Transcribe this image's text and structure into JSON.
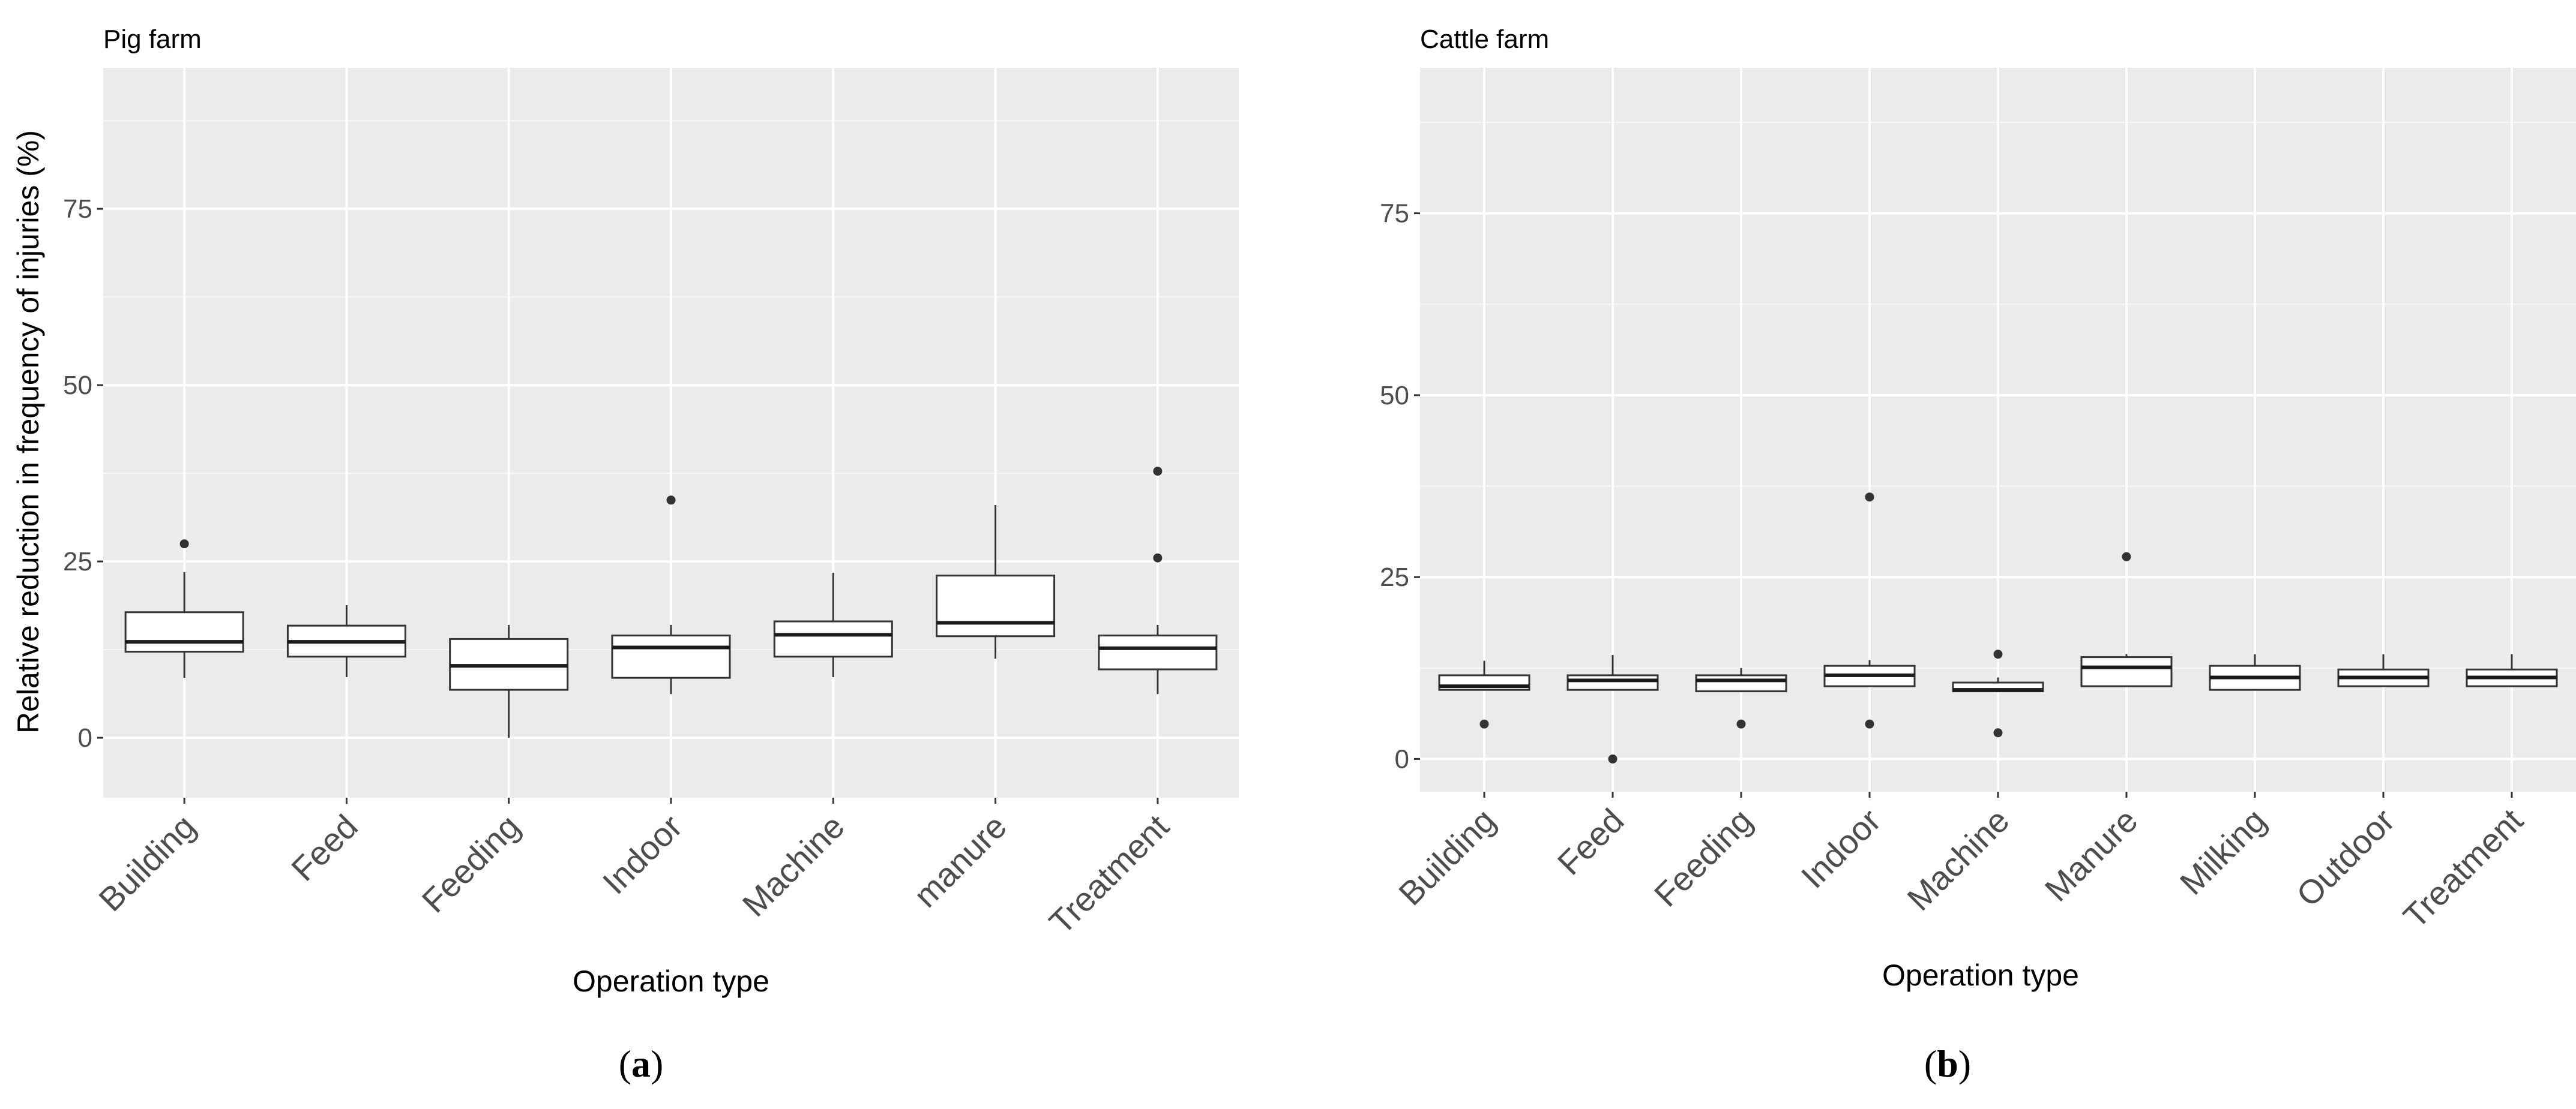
{
  "figure": {
    "panel_label_a": "a",
    "panel_label_b": "b"
  },
  "chart_data": [
    {
      "type": "box",
      "title": "Pig farm",
      "xlabel": "Operation type",
      "ylabel": "Relative reduction in frequency of injuries (%)",
      "ylim": [
        -8.5,
        95
      ],
      "yticks": [
        0,
        25,
        50,
        75
      ],
      "grid": true,
      "categories": [
        "Building",
        "Feed",
        "Feeding",
        "Indoor",
        "Machine",
        "manure",
        "Treatment"
      ],
      "boxes": [
        {
          "category": "Building",
          "whisker_low": 8.5,
          "q1": 12.2,
          "median": 13.6,
          "q3": 17.8,
          "whisker_high": 23.5,
          "outliers": [
            27.5
          ]
        },
        {
          "category": "Feed",
          "whisker_low": 8.6,
          "q1": 11.5,
          "median": 13.6,
          "q3": 15.9,
          "whisker_high": 18.8,
          "outliers": []
        },
        {
          "category": "Feeding",
          "whisker_low": 0.0,
          "q1": 6.8,
          "median": 10.2,
          "q3": 14.0,
          "whisker_high": 16.0,
          "outliers": []
        },
        {
          "category": "Indoor",
          "whisker_low": 6.2,
          "q1": 8.5,
          "median": 12.8,
          "q3": 14.5,
          "whisker_high": 16.0,
          "outliers": [
            33.7
          ]
        },
        {
          "category": "Machine",
          "whisker_low": 8.6,
          "q1": 11.5,
          "median": 14.6,
          "q3": 16.5,
          "whisker_high": 23.4,
          "outliers": []
        },
        {
          "category": "manure",
          "whisker_low": 11.2,
          "q1": 14.4,
          "median": 16.3,
          "q3": 23.0,
          "whisker_high": 33.0,
          "outliers": []
        },
        {
          "category": "Treatment",
          "whisker_low": 6.2,
          "q1": 9.7,
          "median": 12.7,
          "q3": 14.5,
          "whisker_high": 16.0,
          "outliers": [
            25.5,
            37.8
          ]
        }
      ]
    },
    {
      "type": "box",
      "title": "Cattle farm",
      "xlabel": "Operation type",
      "ylabel": "",
      "ylim": [
        -4.5,
        95
      ],
      "yticks": [
        0,
        25,
        50,
        75
      ],
      "grid": true,
      "categories": [
        "Building",
        "Feed",
        "Feeding",
        "Indoor",
        "Machine",
        "Manure",
        "Milking",
        "Outdoor",
        "Treatment"
      ],
      "boxes": [
        {
          "category": "Building",
          "whisker_low": 9.5,
          "q1": 9.5,
          "median": 10.0,
          "q3": 11.5,
          "whisker_high": 13.5,
          "outliers": [
            4.8
          ]
        },
        {
          "category": "Feed",
          "whisker_low": 9.5,
          "q1": 9.5,
          "median": 10.8,
          "q3": 11.5,
          "whisker_high": 14.3,
          "outliers": [
            0.0
          ]
        },
        {
          "category": "Feeding",
          "whisker_low": 9.3,
          "q1": 9.3,
          "median": 10.8,
          "q3": 11.5,
          "whisker_high": 12.5,
          "outliers": [
            4.8
          ]
        },
        {
          "category": "Indoor",
          "whisker_low": 10.0,
          "q1": 10.0,
          "median": 11.5,
          "q3": 12.8,
          "whisker_high": 13.6,
          "outliers": [
            4.8,
            36.0
          ]
        },
        {
          "category": "Machine",
          "whisker_low": 9.3,
          "q1": 9.3,
          "median": 9.5,
          "q3": 10.5,
          "whisker_high": 11.2,
          "outliers": [
            3.6,
            14.4
          ]
        },
        {
          "category": "Manure",
          "whisker_low": 10.0,
          "q1": 10.0,
          "median": 12.6,
          "q3": 14.0,
          "whisker_high": 14.4,
          "outliers": [
            27.8
          ]
        },
        {
          "category": "Milking",
          "whisker_low": 9.5,
          "q1": 9.5,
          "median": 11.2,
          "q3": 12.8,
          "whisker_high": 14.4,
          "outliers": []
        },
        {
          "category": "Outdoor",
          "whisker_low": 10.0,
          "q1": 10.0,
          "median": 11.2,
          "q3": 12.3,
          "whisker_high": 14.4,
          "outliers": []
        },
        {
          "category": "Treatment",
          "whisker_low": 10.0,
          "q1": 10.0,
          "median": 11.2,
          "q3": 12.3,
          "whisker_high": 14.4,
          "outliers": []
        }
      ]
    }
  ]
}
